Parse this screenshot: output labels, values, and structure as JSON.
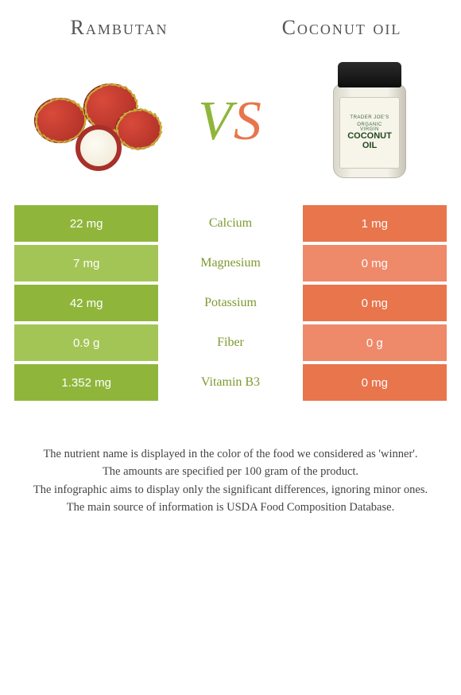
{
  "titles": {
    "left": "Rambutan",
    "right": "Coconut oil"
  },
  "vs": {
    "v": "V",
    "s": "S"
  },
  "colors": {
    "left_bg_even": "#8fb63b",
    "left_bg_odd": "#a3c556",
    "right_bg_even": "#e8754c",
    "right_bg_odd": "#ee896a",
    "mid_text": "#7d9a2f"
  },
  "rows": [
    {
      "name": "Calcium",
      "left": "22 mg",
      "right": "1 mg"
    },
    {
      "name": "Magnesium",
      "left": "7 mg",
      "right": "0 mg"
    },
    {
      "name": "Potassium",
      "left": "42 mg",
      "right": "0 mg"
    },
    {
      "name": "Fiber",
      "left": "0.9 g",
      "right": "0 g"
    },
    {
      "name": "Vitamin B3",
      "left": "1.352 mg",
      "right": "0 mg"
    }
  ],
  "jar": {
    "line1": "TRADER JOE'S",
    "line2": "ORGANIC",
    "line3": "VIRGIN",
    "big": "COCONUT OIL"
  },
  "footer": [
    "The nutrient name is displayed in the color of the food we considered as 'winner'.",
    "The amounts are specified per 100 gram of the product.",
    "The infographic aims to display only the significant differences, ignoring minor ones.",
    "The main source of information is USDA Food Composition Database."
  ]
}
